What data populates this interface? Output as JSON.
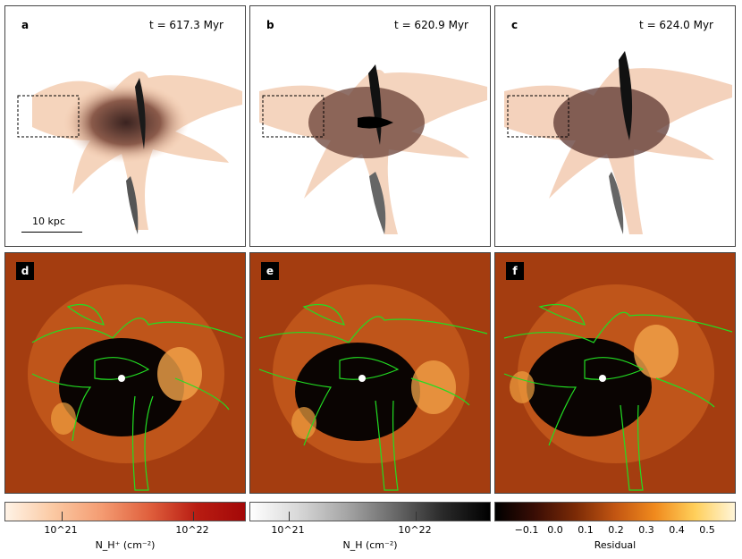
{
  "panels_top": [
    {
      "letter": "a",
      "time": "t = 617.3 Myr"
    },
    {
      "letter": "b",
      "time": "t = 620.9 Myr"
    },
    {
      "letter": "c",
      "time": "t = 624.0 Myr"
    }
  ],
  "scale_bar": "10 kpc",
  "panels_bottom": [
    {
      "letter": "d"
    },
    {
      "letter": "e"
    },
    {
      "letter": "f"
    }
  ],
  "colorbars": [
    {
      "label": "N_H⁺ (cm⁻²)",
      "ticks": [
        "10^21",
        "10^22"
      ],
      "colors": [
        "#fff3e6",
        "#a30808"
      ]
    },
    {
      "label": "N_H (cm⁻²)",
      "ticks": [
        "10^21",
        "10^22"
      ],
      "colors": [
        "#ffffff",
        "#000000"
      ]
    },
    {
      "label": "Residual",
      "ticks": [
        "−0.1",
        "0.0",
        "0.1",
        "0.2",
        "0.3",
        "0.4",
        "0.5"
      ],
      "colors": [
        "#000000",
        "#fff5d8"
      ]
    }
  ],
  "contour_color": "#22dd22"
}
